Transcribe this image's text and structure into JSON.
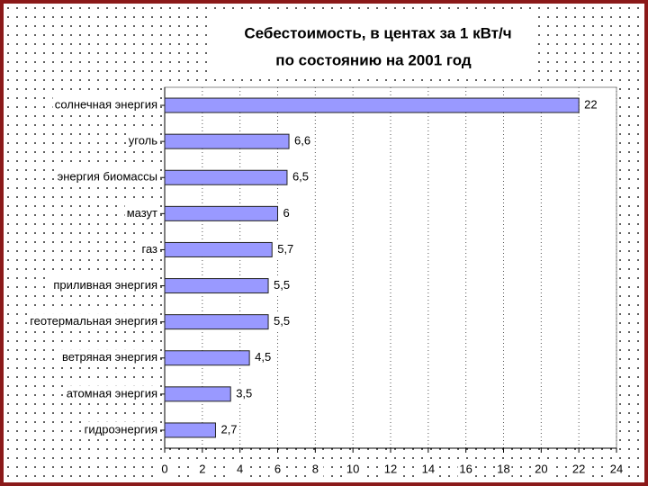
{
  "chart_data": {
    "type": "bar",
    "orientation": "horizontal",
    "title": [
      "Себестоимость, в центах за 1 кВт/ч",
      "по состоянию на 2001 год"
    ],
    "categories": [
      "солнечная энергия",
      "уголь",
      "энергия биомассы",
      "мазут",
      "газ",
      "приливная энергия",
      "геотермальная энергия",
      "ветряная энергия",
      "атомная энергия",
      "гидроэнергия"
    ],
    "values": [
      22,
      6.6,
      6.5,
      6,
      5.7,
      5.5,
      5.5,
      4.5,
      3.5,
      2.7
    ],
    "value_labels": [
      "22",
      "6,6",
      "6,5",
      "6",
      "5,7",
      "5,5",
      "5,5",
      "4,5",
      "3,5",
      "2,7"
    ],
    "color": "#9999ff",
    "xlim": [
      0,
      24
    ],
    "xticks": [
      0,
      2,
      4,
      6,
      8,
      10,
      12,
      14,
      16,
      18,
      20,
      22,
      24
    ],
    "grid": true
  }
}
